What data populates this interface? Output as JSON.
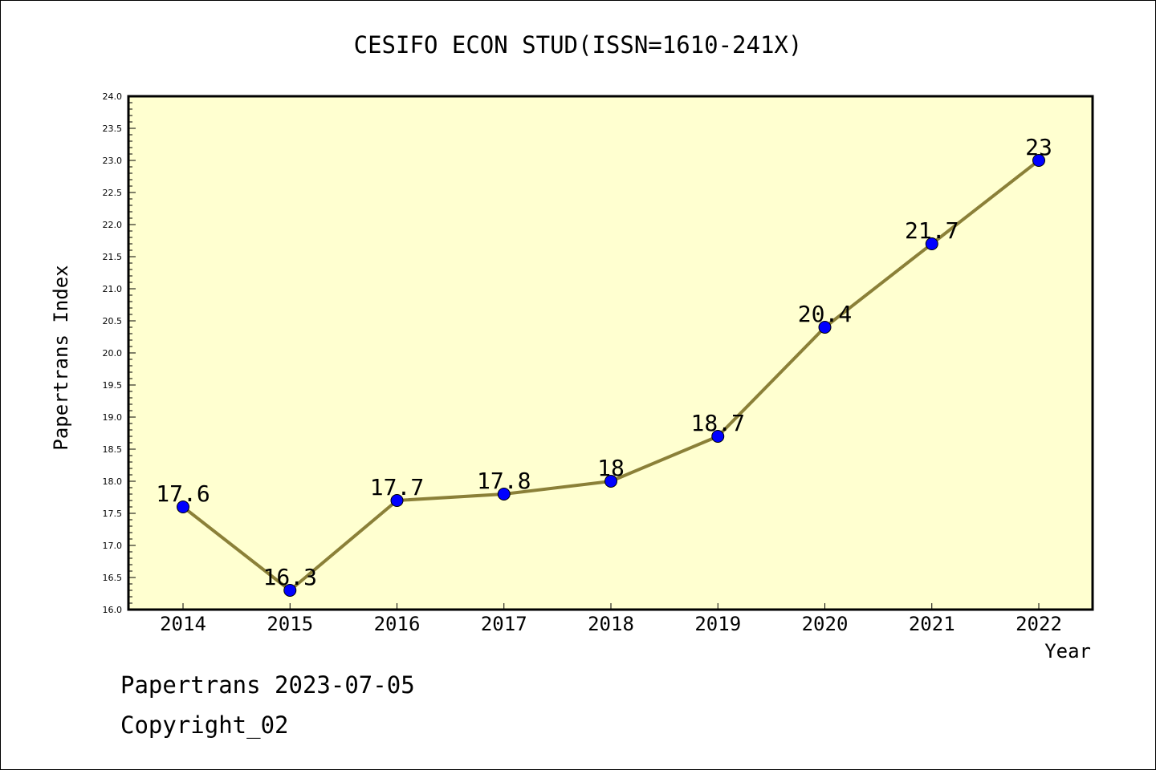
{
  "chart_data": {
    "type": "line",
    "title": "CESIFO ECON STUD(ISSN=1610-241X)",
    "xlabel": "Year",
    "ylabel": "Papertrans Index",
    "x": [
      "2014",
      "2015",
      "2016",
      "2017",
      "2018",
      "2019",
      "2020",
      "2021",
      "2022"
    ],
    "values": [
      17.6,
      16.3,
      17.7,
      17.8,
      18.0,
      18.7,
      20.4,
      21.7,
      23.0
    ],
    "data_labels": [
      "17.6",
      "16.3",
      "17.7",
      "17.8",
      "18",
      "18.7",
      "20.4",
      "21.7",
      "23"
    ],
    "ylim": [
      16.0,
      24.0
    ],
    "yticks": [
      "16.0",
      "16.5",
      "17.0",
      "17.5",
      "18.0",
      "18.5",
      "19.0",
      "19.5",
      "20.0",
      "20.5",
      "21.0",
      "21.5",
      "22.0",
      "22.5",
      "23.0",
      "23.5",
      "24.0"
    ],
    "grid": false,
    "colors": {
      "plot_background": "#ffffd0",
      "line": "#8b8038",
      "marker": "#0000ff"
    }
  },
  "footer": {
    "date_line": "Papertrans 2023-07-05",
    "copyright": "Copyright_02"
  }
}
